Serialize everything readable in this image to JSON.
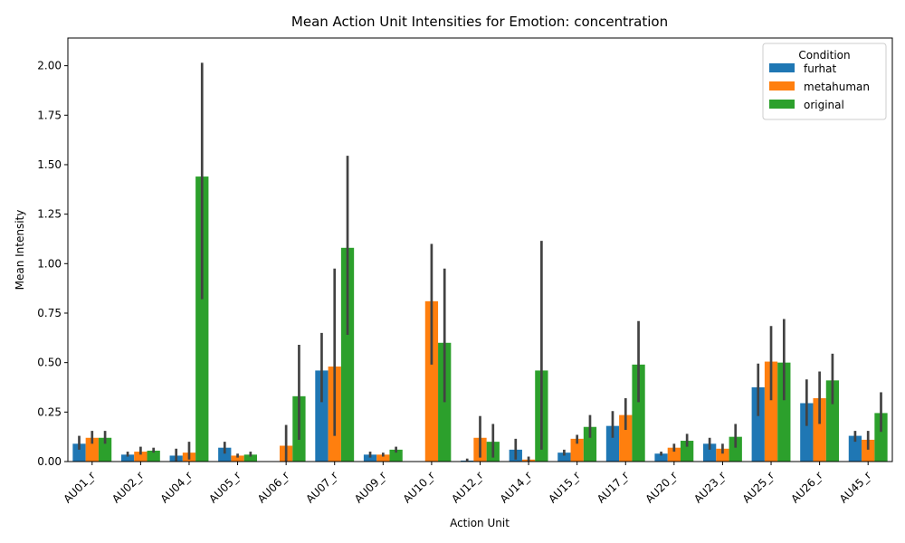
{
  "chart_data": {
    "type": "bar",
    "title": "Mean Action Unit Intensities for Emotion: concentration",
    "xlabel": "Action Unit",
    "ylabel": "Mean Intensity",
    "ylim": [
      0,
      2.14
    ],
    "yticks": [
      "0.00",
      "0.25",
      "0.50",
      "0.75",
      "1.00",
      "1.25",
      "1.50",
      "1.75",
      "2.00"
    ],
    "categories": [
      "AU01_r",
      "AU02_r",
      "AU04_r",
      "AU05_r",
      "AU06_r",
      "AU07_r",
      "AU09_r",
      "AU10_r",
      "AU12_r",
      "AU14_r",
      "AU15_r",
      "AU17_r",
      "AU20_r",
      "AU23_r",
      "AU25_r",
      "AU26_r",
      "AU45_r"
    ],
    "legend": {
      "title": "Condition",
      "placement": "top-right"
    },
    "series": [
      {
        "name": "furhat",
        "color": "#1f77b4",
        "values": [
          0.09,
          0.035,
          0.03,
          0.07,
          0.0,
          0.46,
          0.035,
          0.0,
          0.005,
          0.06,
          0.045,
          0.18,
          0.04,
          0.09,
          0.375,
          0.295,
          0.13
        ],
        "err_low": [
          0.06,
          0.025,
          0.0,
          0.04,
          0.0,
          0.3,
          0.02,
          0.0,
          0.0,
          0.01,
          0.03,
          0.12,
          0.03,
          0.06,
          0.23,
          0.18,
          0.1
        ],
        "err_high": [
          0.13,
          0.05,
          0.065,
          0.1,
          0.0,
          0.65,
          0.05,
          0.0,
          0.015,
          0.115,
          0.06,
          0.255,
          0.05,
          0.12,
          0.495,
          0.415,
          0.155
        ]
      },
      {
        "name": "metahuman",
        "color": "#ff7f0e",
        "values": [
          0.12,
          0.05,
          0.045,
          0.03,
          0.08,
          0.48,
          0.035,
          0.81,
          0.12,
          0.01,
          0.115,
          0.235,
          0.07,
          0.065,
          0.505,
          0.32,
          0.11
        ],
        "err_low": [
          0.09,
          0.035,
          0.01,
          0.02,
          0.0,
          0.13,
          0.025,
          0.49,
          0.02,
          0.0,
          0.09,
          0.16,
          0.05,
          0.04,
          0.31,
          0.19,
          0.06
        ],
        "err_high": [
          0.155,
          0.075,
          0.1,
          0.04,
          0.185,
          0.975,
          0.045,
          1.1,
          0.23,
          0.025,
          0.135,
          0.32,
          0.09,
          0.09,
          0.685,
          0.455,
          0.155
        ]
      },
      {
        "name": "original",
        "color": "#2ca02c",
        "values": [
          0.12,
          0.055,
          1.44,
          0.035,
          0.33,
          1.08,
          0.06,
          0.6,
          0.1,
          0.46,
          0.175,
          0.49,
          0.105,
          0.125,
          0.5,
          0.41,
          0.245
        ],
        "err_low": [
          0.09,
          0.045,
          0.82,
          0.025,
          0.11,
          0.64,
          0.045,
          0.3,
          0.02,
          0.06,
          0.12,
          0.3,
          0.075,
          0.07,
          0.31,
          0.29,
          0.15
        ],
        "err_high": [
          0.155,
          0.07,
          2.015,
          0.05,
          0.59,
          1.545,
          0.075,
          0.975,
          0.19,
          1.115,
          0.235,
          0.71,
          0.14,
          0.19,
          0.72,
          0.545,
          0.35
        ]
      }
    ]
  }
}
